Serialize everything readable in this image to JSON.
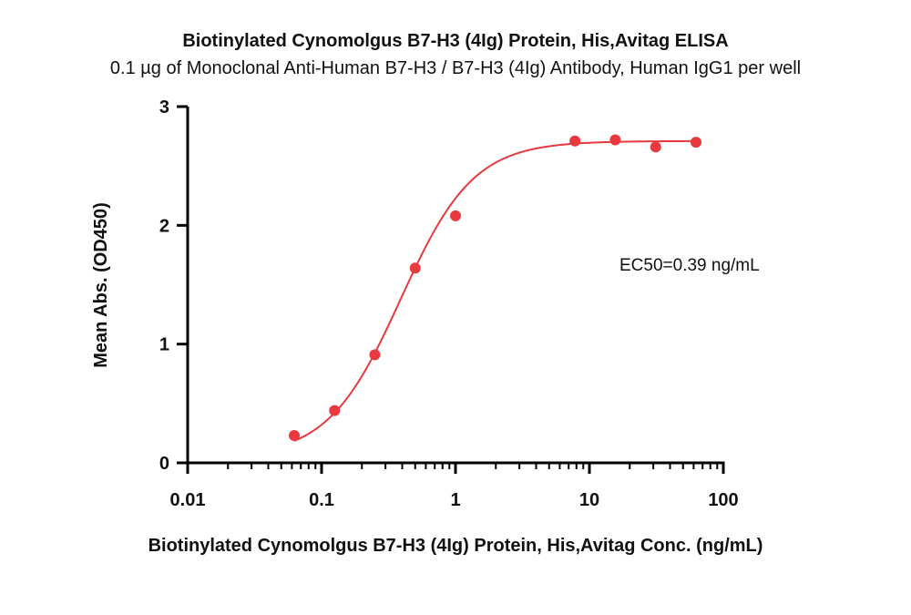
{
  "chart_data": {
    "type": "scatter",
    "title": "Biotinylated Cynomolgus B7-H3 (4Ig) Protein, His,Avitag ELISA",
    "subtitle": "0.1 µg of Monoclonal Anti-Human B7-H3 / B7-H3 (4Ig) Antibody, Human IgG1 per well",
    "xlabel": "Biotinylated Cynomolgus B7-H3 (4Ig) Protein, His,Avitag Conc. (ng/mL)",
    "ylabel": "Mean Abs. (OD450)",
    "x_scale": "log",
    "xlim": [
      0.01,
      100
    ],
    "ylim": [
      0,
      3
    ],
    "x_ticks": [
      0.01,
      0.1,
      1,
      10,
      100
    ],
    "x_tick_labels": [
      "0.01",
      "0.1",
      "1",
      "10",
      "100"
    ],
    "y_ticks": [
      0,
      1,
      2,
      3
    ],
    "y_tick_labels": [
      "0",
      "1",
      "2",
      "3"
    ],
    "grid": false,
    "legend": "none",
    "annotation": "EC50=0.39 ng/mL",
    "color": "#e8393f",
    "series": [
      {
        "points": [
          {
            "x": 0.0625,
            "y": 0.23
          },
          {
            "x": 0.125,
            "y": 0.44
          },
          {
            "x": 0.25,
            "y": 0.91
          },
          {
            "x": 0.5,
            "y": 1.64
          },
          {
            "x": 1,
            "y": 2.08
          },
          {
            "x": 7.8,
            "y": 2.71
          },
          {
            "x": 15.6,
            "y": 2.72
          },
          {
            "x": 31.25,
            "y": 2.66
          },
          {
            "x": 62.5,
            "y": 2.7
          }
        ]
      }
    ],
    "fit_curve": {
      "model": "4PL",
      "bottom": 0.05,
      "top": 2.71,
      "ec50": 0.39,
      "hill": 1.6,
      "x_range": [
        0.0625,
        62.5
      ]
    }
  }
}
